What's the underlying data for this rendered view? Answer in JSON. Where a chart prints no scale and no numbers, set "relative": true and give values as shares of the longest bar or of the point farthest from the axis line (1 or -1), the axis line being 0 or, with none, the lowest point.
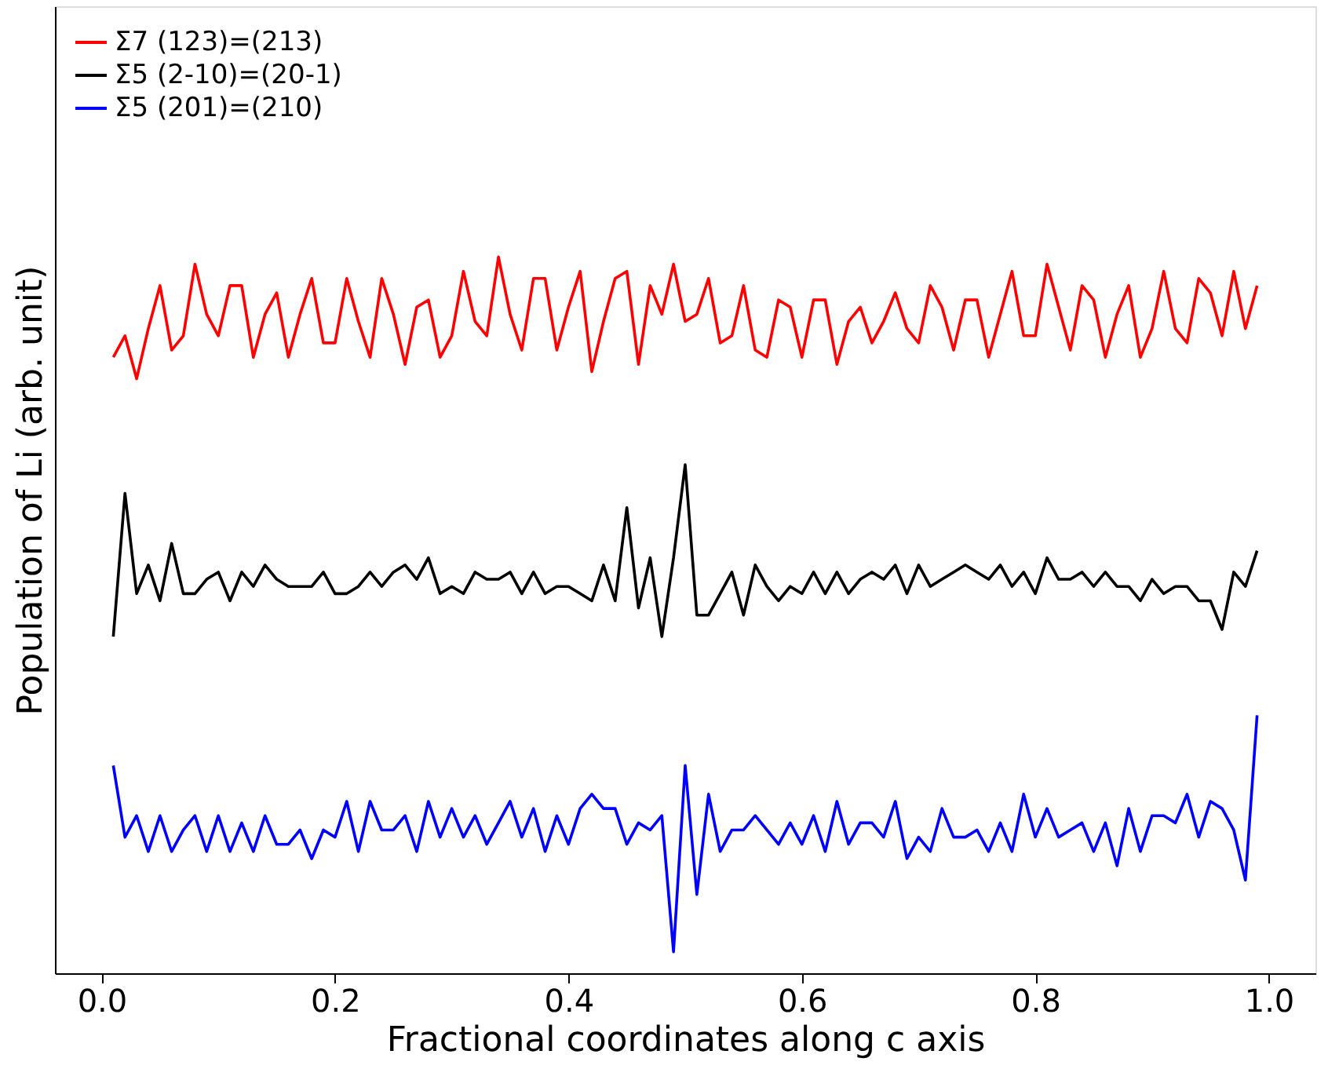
{
  "chart_data": {
    "type": "line",
    "relative": true,
    "xlabel": "Fractional coordinates along c axis",
    "ylabel": "Population of Li (arb. unit)",
    "x": [
      0.01,
      0.02,
      0.03,
      0.04,
      0.05,
      0.06,
      0.07,
      0.08,
      0.09,
      0.1,
      0.11,
      0.12,
      0.13,
      0.14,
      0.15,
      0.16,
      0.17,
      0.18,
      0.19,
      0.2,
      0.21,
      0.22,
      0.23,
      0.24,
      0.25,
      0.26,
      0.27,
      0.28,
      0.29,
      0.3,
      0.31,
      0.32,
      0.33,
      0.34,
      0.35,
      0.36,
      0.37,
      0.38,
      0.39,
      0.4,
      0.41,
      0.42,
      0.43,
      0.44,
      0.45,
      0.46,
      0.47,
      0.48,
      0.49,
      0.5,
      0.51,
      0.52,
      0.53,
      0.54,
      0.55,
      0.56,
      0.57,
      0.58,
      0.59,
      0.6,
      0.61,
      0.62,
      0.63,
      0.64,
      0.65,
      0.66,
      0.67,
      0.68,
      0.69,
      0.7,
      0.71,
      0.72,
      0.73,
      0.74,
      0.75,
      0.76,
      0.77,
      0.78,
      0.79,
      0.8,
      0.81,
      0.82,
      0.83,
      0.84,
      0.85,
      0.86,
      0.87,
      0.88,
      0.89,
      0.9,
      0.91,
      0.92,
      0.93,
      0.94,
      0.95,
      0.96,
      0.97,
      0.98,
      0.99
    ],
    "xlim": [
      -0.04,
      1.04
    ],
    "xticks": [
      {
        "value": 0,
        "label": "0.0"
      },
      {
        "value": 0.2,
        "label": "0.2"
      },
      {
        "value": 0.4,
        "label": "0.4"
      },
      {
        "value": 0.6,
        "label": "0.6"
      },
      {
        "value": 0.8,
        "label": "0.8"
      },
      {
        "value": 1,
        "label": "1.0"
      }
    ],
    "series": [
      {
        "name": "Σ7 (123)=(213)",
        "color": "#ff0000",
        "values": [
          0.86,
          0.89,
          0.83,
          0.9,
          0.96,
          0.87,
          0.89,
          0.99,
          0.92,
          0.89,
          0.96,
          0.96,
          0.86,
          0.92,
          0.95,
          0.86,
          0.92,
          0.97,
          0.88,
          0.88,
          0.97,
          0.91,
          0.86,
          0.97,
          0.92,
          0.85,
          0.93,
          0.94,
          0.86,
          0.89,
          0.98,
          0.91,
          0.89,
          1.0,
          0.92,
          0.87,
          0.97,
          0.97,
          0.87,
          0.93,
          0.98,
          0.84,
          0.91,
          0.97,
          0.98,
          0.85,
          0.96,
          0.92,
          0.99,
          0.91,
          0.92,
          0.97,
          0.88,
          0.89,
          0.96,
          0.87,
          0.86,
          0.94,
          0.93,
          0.86,
          0.94,
          0.94,
          0.85,
          0.91,
          0.93,
          0.88,
          0.91,
          0.95,
          0.9,
          0.88,
          0.96,
          0.93,
          0.87,
          0.94,
          0.94,
          0.86,
          0.92,
          0.98,
          0.89,
          0.89,
          0.99,
          0.93,
          0.87,
          0.96,
          0.94,
          0.86,
          0.92,
          0.96,
          0.86,
          0.9,
          0.98,
          0.9,
          0.88,
          0.97,
          0.95,
          0.89,
          0.98,
          0.9,
          0.96
        ]
      },
      {
        "name": "Σ5 (2-10)=(20-1)",
        "color": "#000000",
        "values": [
          0.47,
          0.67,
          0.53,
          0.57,
          0.52,
          0.6,
          0.53,
          0.53,
          0.55,
          0.56,
          0.52,
          0.56,
          0.54,
          0.57,
          0.55,
          0.54,
          0.54,
          0.54,
          0.56,
          0.53,
          0.53,
          0.54,
          0.56,
          0.54,
          0.56,
          0.57,
          0.55,
          0.58,
          0.53,
          0.54,
          0.53,
          0.56,
          0.55,
          0.55,
          0.56,
          0.53,
          0.56,
          0.53,
          0.54,
          0.54,
          0.53,
          0.52,
          0.57,
          0.52,
          0.65,
          0.51,
          0.58,
          0.47,
          0.58,
          0.71,
          0.5,
          0.5,
          0.53,
          0.56,
          0.5,
          0.57,
          0.54,
          0.52,
          0.54,
          0.53,
          0.56,
          0.53,
          0.56,
          0.53,
          0.55,
          0.56,
          0.55,
          0.57,
          0.53,
          0.57,
          0.54,
          0.55,
          0.56,
          0.57,
          0.56,
          0.55,
          0.57,
          0.54,
          0.56,
          0.53,
          0.58,
          0.55,
          0.55,
          0.56,
          0.54,
          0.56,
          0.54,
          0.54,
          0.52,
          0.55,
          0.53,
          0.54,
          0.54,
          0.52,
          0.52,
          0.48,
          0.56,
          0.54,
          0.59
        ]
      },
      {
        "name": "Σ5 (201)=(210)",
        "color": "#0000ff",
        "values": [
          0.29,
          0.19,
          0.22,
          0.17,
          0.22,
          0.17,
          0.2,
          0.22,
          0.17,
          0.22,
          0.17,
          0.21,
          0.17,
          0.22,
          0.18,
          0.18,
          0.2,
          0.16,
          0.2,
          0.19,
          0.24,
          0.17,
          0.24,
          0.2,
          0.2,
          0.22,
          0.17,
          0.24,
          0.19,
          0.23,
          0.19,
          0.22,
          0.18,
          0.21,
          0.24,
          0.19,
          0.23,
          0.17,
          0.22,
          0.18,
          0.23,
          0.25,
          0.23,
          0.23,
          0.18,
          0.21,
          0.2,
          0.22,
          0.03,
          0.29,
          0.11,
          0.25,
          0.17,
          0.2,
          0.2,
          0.22,
          0.2,
          0.18,
          0.21,
          0.18,
          0.22,
          0.17,
          0.24,
          0.18,
          0.21,
          0.21,
          0.19,
          0.24,
          0.16,
          0.19,
          0.17,
          0.23,
          0.19,
          0.19,
          0.2,
          0.17,
          0.21,
          0.17,
          0.25,
          0.19,
          0.23,
          0.19,
          0.2,
          0.21,
          0.17,
          0.21,
          0.15,
          0.23,
          0.17,
          0.22,
          0.22,
          0.21,
          0.25,
          0.19,
          0.24,
          0.23,
          0.2,
          0.13,
          0.36
        ]
      }
    ],
    "legend": "top left",
    "grid": false,
    "marker": "none",
    "line_style": "solid"
  }
}
